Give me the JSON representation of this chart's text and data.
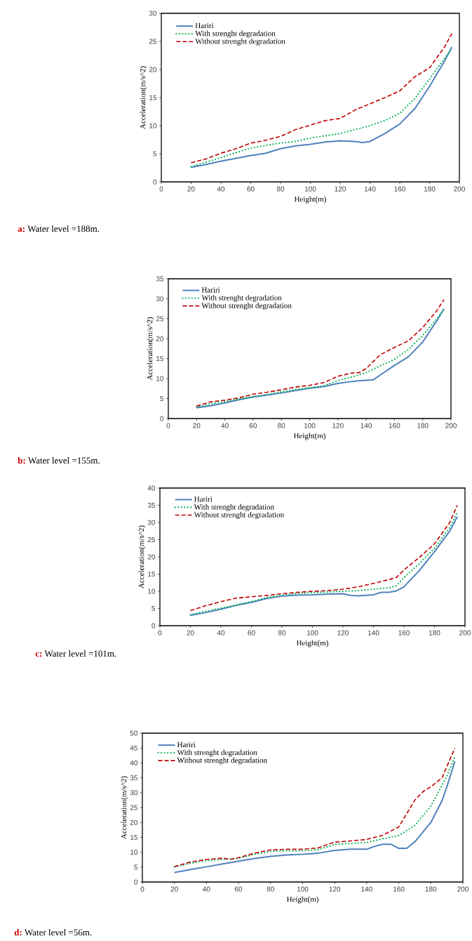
{
  "chart_data": [
    {
      "type": "line",
      "xlabel": "Height(m)",
      "ylabel": "Acceleration(m/s^2)",
      "xlim": [
        0,
        200
      ],
      "ylim": [
        0,
        30
      ],
      "xticks": [
        0,
        20,
        40,
        60,
        80,
        100,
        120,
        140,
        160,
        180,
        200
      ],
      "yticks": [
        0,
        5,
        10,
        15,
        20,
        25,
        30
      ],
      "grid": false,
      "legend": "top left",
      "annotations": [
        "a:",
        "Water level =188m."
      ],
      "series": [
        {
          "name": "Hariri",
          "color": "#4f81bd",
          "line_style": "solid",
          "x": [
            20,
            30,
            40,
            50,
            60,
            70,
            80,
            90,
            100,
            110,
            120,
            130,
            135,
            140,
            150,
            160,
            170,
            180,
            190,
            195
          ],
          "values": [
            2.6,
            3.1,
            3.7,
            4.2,
            4.7,
            5.1,
            5.9,
            6.4,
            6.7,
            7.1,
            7.3,
            7.2,
            7.0,
            7.2,
            8.6,
            10.3,
            13.0,
            17.0,
            21.5,
            24.0
          ]
        },
        {
          "name": "With strenght degradation",
          "color": "#00b050",
          "line_style": "dotted",
          "x": [
            20,
            30,
            40,
            50,
            60,
            70,
            80,
            90,
            100,
            110,
            120,
            130,
            140,
            150,
            160,
            170,
            180,
            190,
            195
          ],
          "values": [
            2.7,
            3.5,
            4.3,
            5.2,
            6.0,
            6.5,
            6.9,
            7.2,
            7.8,
            8.2,
            8.6,
            9.3,
            10.0,
            10.9,
            12.2,
            14.8,
            18.3,
            22.0,
            23.7
          ]
        },
        {
          "name": "Without strenght degradation",
          "color": "#c00000",
          "line_style": "dashed",
          "x": [
            20,
            30,
            40,
            50,
            60,
            70,
            80,
            90,
            100,
            110,
            120,
            130,
            140,
            150,
            160,
            170,
            180,
            190,
            195
          ],
          "values": [
            3.4,
            4.1,
            5.1,
            5.9,
            6.9,
            7.4,
            8.1,
            9.3,
            10.1,
            10.9,
            11.3,
            12.8,
            13.9,
            15.0,
            16.2,
            18.7,
            20.3,
            24.0,
            26.4
          ]
        }
      ]
    },
    {
      "type": "line",
      "xlabel": "Height(m)",
      "ylabel": "Acceleration(m/s^2)",
      "xlim": [
        0,
        200
      ],
      "ylim": [
        0,
        35
      ],
      "xticks": [
        0,
        20,
        40,
        60,
        80,
        100,
        120,
        140,
        160,
        180,
        200
      ],
      "yticks": [
        0,
        5,
        10,
        15,
        20,
        25,
        30,
        35
      ],
      "grid": false,
      "legend": "top left",
      "annotations": [
        "b:",
        "Water level =155m."
      ],
      "series": [
        {
          "name": "Hariri",
          "color": "#4f81bd",
          "line_style": "solid",
          "x": [
            20,
            30,
            40,
            50,
            60,
            70,
            80,
            90,
            100,
            110,
            120,
            130,
            140,
            145,
            150,
            160,
            170,
            180,
            190,
            195
          ],
          "values": [
            2.7,
            3.2,
            3.9,
            4.7,
            5.4,
            5.9,
            6.4,
            7.0,
            7.6,
            8.0,
            8.8,
            9.3,
            9.6,
            9.7,
            10.9,
            13.3,
            15.5,
            19.2,
            24.5,
            27.5
          ]
        },
        {
          "name": "With strenght degradation",
          "color": "#00b050",
          "line_style": "dotted",
          "x": [
            20,
            30,
            40,
            50,
            60,
            70,
            80,
            90,
            100,
            110,
            120,
            130,
            140,
            150,
            160,
            170,
            180,
            190,
            195
          ],
          "values": [
            2.9,
            3.7,
            4.3,
            4.9,
            5.5,
            6.0,
            6.7,
            7.3,
            7.7,
            8.2,
            9.5,
            10.4,
            11.5,
            13.2,
            14.8,
            17.3,
            20.8,
            25.0,
            27.3
          ]
        },
        {
          "name": "Without strenght degradation",
          "color": "#c00000",
          "line_style": "dashed",
          "x": [
            20,
            30,
            40,
            50,
            60,
            70,
            80,
            90,
            100,
            110,
            120,
            130,
            135,
            140,
            150,
            160,
            170,
            180,
            190,
            195
          ],
          "values": [
            3.1,
            4.2,
            4.6,
            5.2,
            6.1,
            6.6,
            7.2,
            7.9,
            8.3,
            9.0,
            10.6,
            11.4,
            11.5,
            12.5,
            16.0,
            17.8,
            19.5,
            22.8,
            27.0,
            29.8
          ]
        }
      ]
    },
    {
      "type": "line",
      "xlabel": "Height(m)",
      "ylabel": "Acceleration(m/s^2)",
      "xlim": [
        0,
        200
      ],
      "ylim": [
        0,
        40
      ],
      "xticks": [
        0,
        20,
        40,
        60,
        80,
        100,
        120,
        140,
        160,
        180,
        200
      ],
      "yticks": [
        0,
        5,
        10,
        15,
        20,
        25,
        30,
        35,
        40
      ],
      "grid": false,
      "legend": "top left",
      "annotations": [
        "c:",
        "Water level =101m."
      ],
      "series": [
        {
          "name": "Hariri",
          "color": "#4f81bd",
          "line_style": "solid",
          "x": [
            20,
            30,
            40,
            50,
            60,
            70,
            80,
            90,
            100,
            110,
            120,
            125,
            130,
            140,
            145,
            150,
            155,
            160,
            170,
            180,
            190,
            195
          ],
          "values": [
            3.0,
            3.8,
            4.8,
            5.9,
            6.8,
            7.9,
            8.6,
            8.9,
            9.0,
            9.2,
            9.3,
            8.8,
            8.7,
            9.0,
            9.7,
            9.7,
            10.1,
            11.3,
            16.0,
            21.5,
            27.5,
            31.7
          ]
        },
        {
          "name": "With strenght degradation",
          "color": "#00b050",
          "line_style": "dotted",
          "x": [
            20,
            30,
            40,
            50,
            60,
            70,
            80,
            90,
            100,
            110,
            120,
            130,
            140,
            150,
            155,
            160,
            170,
            180,
            190,
            195
          ],
          "values": [
            3.2,
            4.2,
            5.1,
            6.0,
            7.0,
            8.2,
            8.9,
            9.4,
            9.6,
            9.8,
            10.0,
            10.2,
            10.6,
            11.0,
            11.6,
            14.0,
            18.0,
            22.5,
            28.5,
            33.0
          ]
        },
        {
          "name": "Without strenght degradation",
          "color": "#c00000",
          "line_style": "dashed",
          "x": [
            20,
            30,
            40,
            50,
            60,
            70,
            80,
            90,
            100,
            110,
            120,
            130,
            140,
            150,
            155,
            160,
            170,
            180,
            190,
            195
          ],
          "values": [
            4.4,
            5.8,
            7.0,
            8.0,
            8.4,
            8.8,
            9.3,
            9.7,
            10.0,
            10.2,
            10.6,
            11.3,
            12.3,
            13.4,
            14.0,
            16.2,
            19.8,
            23.8,
            30.0,
            35.0
          ]
        }
      ]
    },
    {
      "type": "line",
      "xlabel": "Height(m)",
      "ylabel": "Acceleration(m/s^2)",
      "xlim": [
        0,
        200
      ],
      "ylim": [
        0,
        50
      ],
      "xticks": [
        0,
        20,
        40,
        60,
        80,
        100,
        120,
        140,
        160,
        180,
        200
      ],
      "yticks": [
        0,
        5,
        10,
        15,
        20,
        25,
        30,
        35,
        40,
        45,
        50
      ],
      "grid": false,
      "legend": "top left",
      "annotations": [
        "d:",
        "Water level =56m."
      ],
      "series": [
        {
          "name": "Hariri",
          "color": "#4f81bd",
          "line_style": "solid",
          "x": [
            20,
            30,
            40,
            50,
            60,
            70,
            80,
            90,
            100,
            110,
            120,
            130,
            140,
            145,
            150,
            155,
            160,
            165,
            170,
            180,
            187,
            190,
            195
          ],
          "values": [
            3.2,
            4.2,
            5.1,
            6.1,
            7.0,
            7.9,
            8.6,
            9.1,
            9.3,
            9.7,
            10.6,
            11.0,
            11.0,
            12.0,
            12.7,
            12.7,
            11.3,
            11.3,
            13.5,
            20.0,
            27.3,
            32.0,
            40.5
          ]
        },
        {
          "name": "With strenght degradation",
          "color": "#00b050",
          "line_style": "dotted",
          "x": [
            20,
            30,
            40,
            50,
            60,
            70,
            80,
            90,
            100,
            110,
            120,
            130,
            140,
            150,
            160,
            170,
            180,
            190,
            195
          ],
          "values": [
            5.0,
            6.3,
            7.2,
            7.6,
            7.9,
            9.3,
            10.3,
            10.5,
            10.5,
            10.9,
            12.6,
            12.9,
            13.3,
            14.5,
            15.6,
            19.0,
            25.5,
            35.5,
            42.0
          ]
        },
        {
          "name": "Without strenght degradation",
          "color": "#c00000",
          "line_style": "dashed",
          "x": [
            20,
            30,
            40,
            50,
            55,
            60,
            70,
            80,
            90,
            100,
            110,
            120,
            130,
            140,
            150,
            160,
            165,
            170,
            175,
            180,
            187,
            195
          ],
          "values": [
            5.2,
            6.7,
            7.6,
            8.0,
            7.6,
            8.2,
            9.7,
            10.8,
            11.0,
            11.0,
            11.5,
            13.4,
            13.8,
            14.3,
            15.7,
            18.5,
            23.0,
            27.5,
            30.3,
            32.0,
            35.0,
            45.0
          ]
        }
      ]
    }
  ]
}
